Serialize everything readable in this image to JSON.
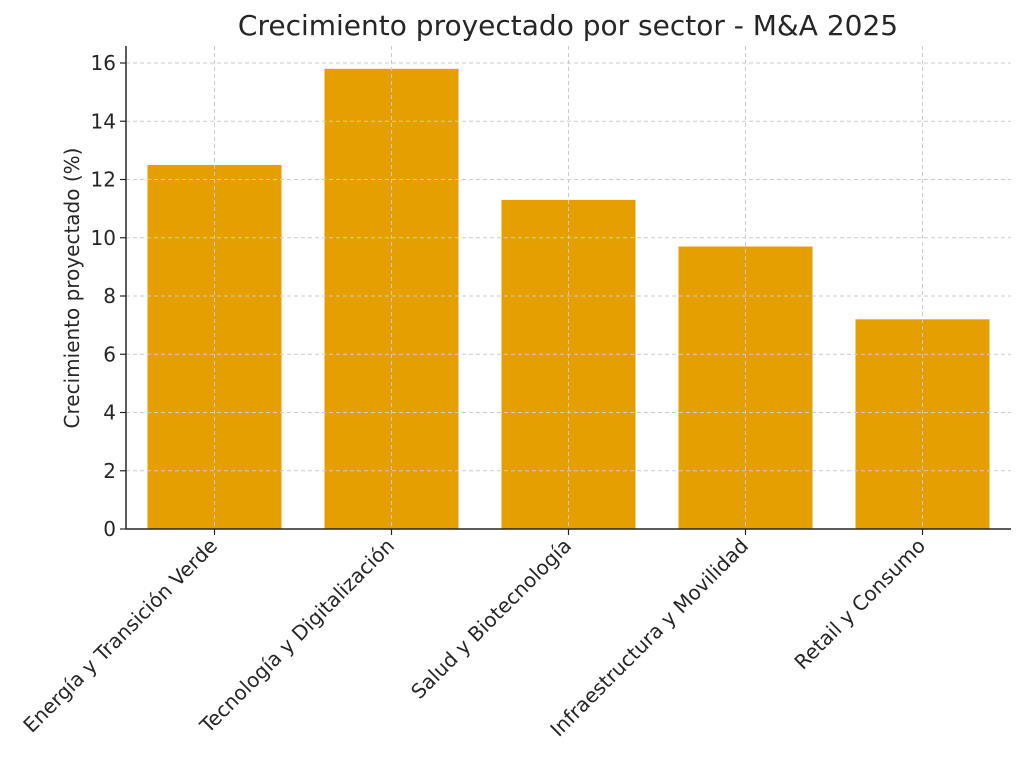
{
  "chart_data": {
    "type": "bar",
    "title": "Crecimiento proyectado por sector - M&A 2025",
    "xlabel": "",
    "ylabel": "Crecimiento proyectado (%)",
    "categories": [
      "Energía y Transición Verde",
      "Tecnología y Digitalización",
      "Salud y Biotecnología",
      "Infraestructura y Movilidad",
      "Retail y Consumo"
    ],
    "values": [
      12.5,
      15.8,
      11.3,
      9.7,
      7.2
    ],
    "ylim": [
      0,
      16.6
    ],
    "yticks": [
      0,
      2,
      4,
      6,
      8,
      10,
      12,
      14,
      16
    ],
    "grid": true,
    "legend": null,
    "colors": {
      "bar": "#E69F00",
      "grid": "#cccccc",
      "axis": "#262626",
      "text": "#262626"
    }
  }
}
